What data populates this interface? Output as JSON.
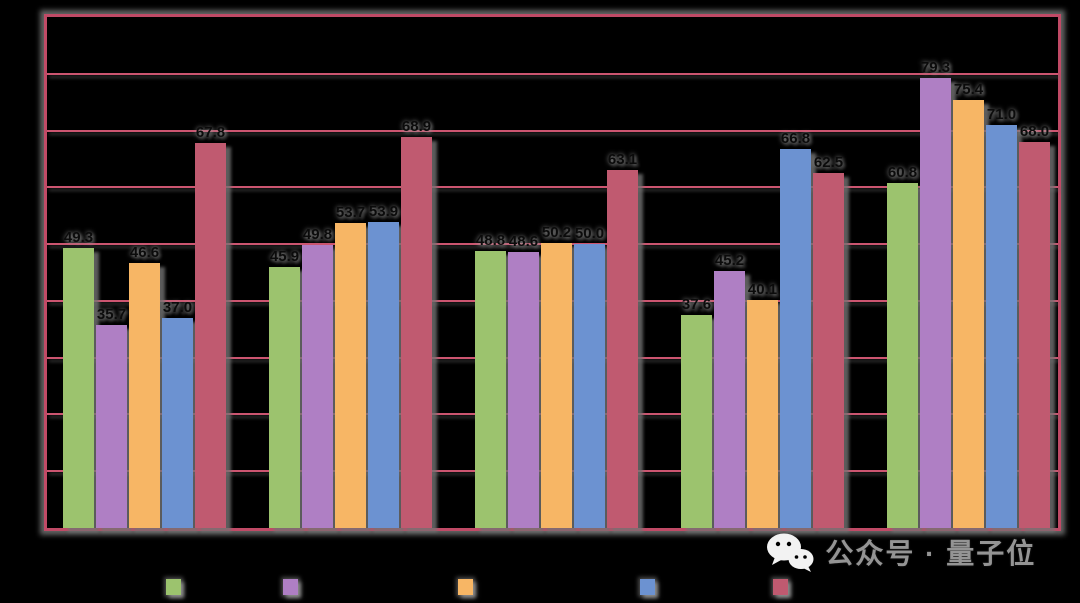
{
  "title": {
    "text": ""
  },
  "chart_data": {
    "type": "bar",
    "title": "",
    "title_visible_as": "black text on black background (illegible in source image)",
    "categories": [
      "",
      "",
      "",
      "",
      ""
    ],
    "series": [
      {
        "name": "",
        "color": "#9CC36E",
        "values": [
          49.3,
          45.9,
          48.8,
          37.6,
          60.8
        ]
      },
      {
        "name": "",
        "color": "#AF7FC4",
        "values": [
          35.7,
          49.8,
          48.6,
          45.2,
          79.3
        ]
      },
      {
        "name": "",
        "color": "#F7B665",
        "values": [
          46.6,
          53.7,
          50.2,
          40.1,
          75.4
        ]
      },
      {
        "name": "",
        "color": "#6C92D1",
        "values": [
          37.0,
          53.9,
          50.0,
          66.8,
          71.0
        ]
      },
      {
        "name": "",
        "color": "#C05A70",
        "values": [
          67.8,
          68.9,
          63.1,
          62.5,
          68.0
        ]
      }
    ],
    "ylim": [
      0,
      90
    ],
    "grid_interval": 10,
    "grid": true,
    "data_labels_visible": true,
    "legend_position": "bottom",
    "note_values": "values estimated from bar heights vs gridlines; axis/legend text is black-on-black and unreadable"
  },
  "colors": {
    "background": "#000000",
    "plot_border": "#C04A66",
    "gridline": "#CC5570",
    "bar_shadow": "#737373",
    "watermark_text_color": "#949494"
  },
  "watermark": {
    "icon": "wechat-icon",
    "text": "公众号 · 量子位"
  }
}
